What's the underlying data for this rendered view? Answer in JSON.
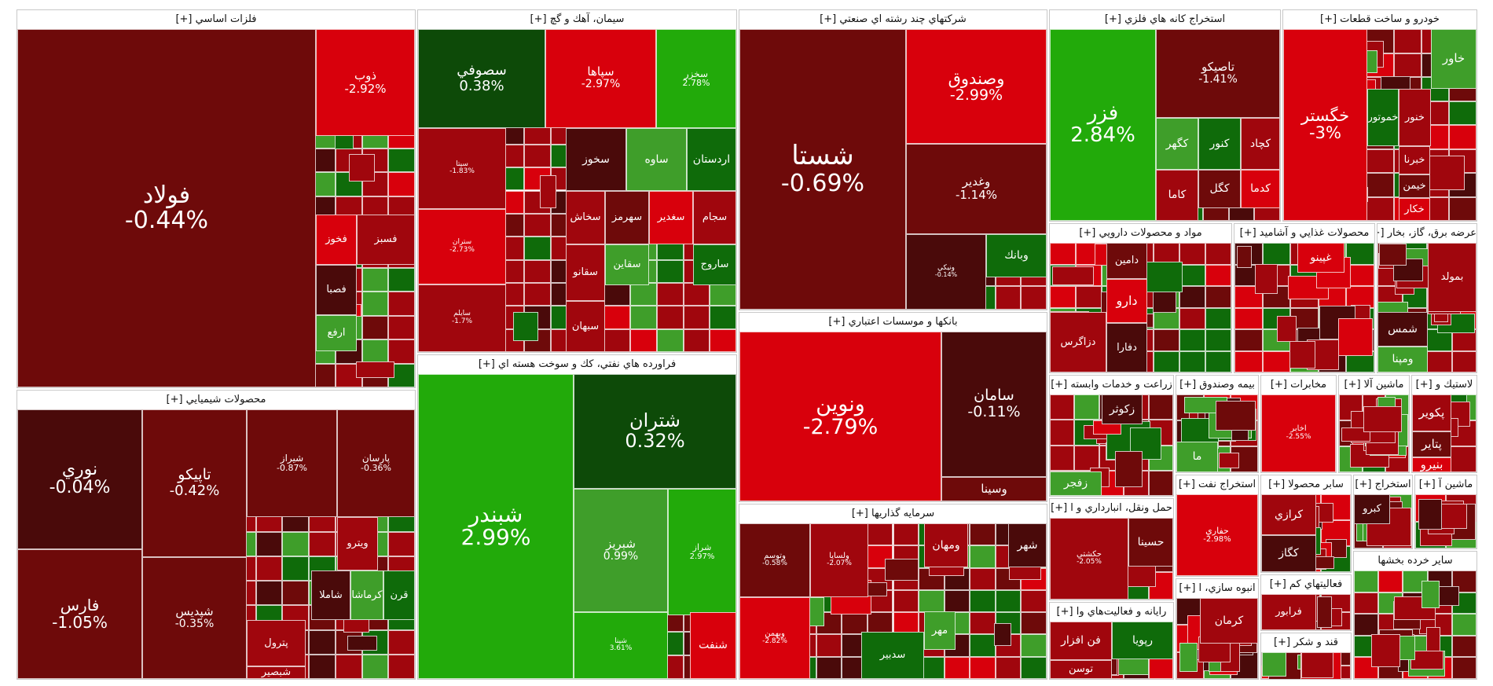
{
  "chart_data": {
    "type": "treemap",
    "title": "",
    "value_unit": "%",
    "colors": {
      "strong_positive": "#22aa0a",
      "positive": "#3f9e2a",
      "weak_positive": "#0f6b0a",
      "flat_positive": "#0d4a08",
      "flat_negative": "#4a0a0a",
      "weak_negative": "#6e0a0a",
      "negative": "#a0060d",
      "strong_negative": "#d8000c"
    },
    "sectors": [
      {
        "name": "فلزات اساسي [+]",
        "tiles": [
          {
            "symbol": "فولاد",
            "change": "-0.44%"
          },
          {
            "symbol": "ذوب",
            "change": "-2.92%"
          },
          {
            "symbol": "فخوز",
            "change": ""
          },
          {
            "symbol": "فسبز",
            "change": ""
          },
          {
            "symbol": "فصبا",
            "change": ""
          },
          {
            "symbol": "ارفع",
            "change": ""
          }
        ]
      },
      {
        "name": "سيمان، آهك و گچ [+]",
        "tiles": [
          {
            "symbol": "سصوفي",
            "change": "0.38%"
          },
          {
            "symbol": "سپاها",
            "change": "-2.97%"
          },
          {
            "symbol": "سخزر",
            "change": "2.78%"
          },
          {
            "symbol": "سخوز",
            "change": ""
          },
          {
            "symbol": "ساوه",
            "change": ""
          },
          {
            "symbol": "اردستان",
            "change": ""
          },
          {
            "symbol": "سيتا",
            "change": "-1.83%"
          },
          {
            "symbol": "سخاش",
            "change": ""
          },
          {
            "symbol": "سهرمز",
            "change": ""
          },
          {
            "symbol": "سغدير",
            "change": ""
          },
          {
            "symbol": "سجام",
            "change": ""
          },
          {
            "symbol": "ستران",
            "change": "-2.73%"
          },
          {
            "symbol": "سقاين",
            "change": ""
          },
          {
            "symbol": "ساروج",
            "change": ""
          },
          {
            "symbol": "سقانو",
            "change": ""
          },
          {
            "symbol": "سبهان",
            "change": ""
          },
          {
            "symbol": "سايلم",
            "change": "-1.7%"
          }
        ]
      },
      {
        "name": "شركتهاي چند رشته اي صنعتي [+]",
        "tiles": [
          {
            "symbol": "شستا",
            "change": "-0.69%"
          },
          {
            "symbol": "وصندوق",
            "change": "-2.99%"
          },
          {
            "symbol": "وغدير",
            "change": "-1.14%"
          },
          {
            "symbol": "ونيكي",
            "change": "-0.14%"
          },
          {
            "symbol": "وبانك",
            "change": ""
          }
        ]
      },
      {
        "name": "استخراج كانه هاي فلزي [+]",
        "tiles": [
          {
            "symbol": "فزر",
            "change": "2.84%"
          },
          {
            "symbol": "تاصيكو",
            "change": "-1.41%"
          },
          {
            "symbol": "كگهر",
            "change": ""
          },
          {
            "symbol": "كنور",
            "change": ""
          },
          {
            "symbol": "كچاد",
            "change": ""
          },
          {
            "symbol": "كاما",
            "change": ""
          },
          {
            "symbol": "كگل",
            "change": ""
          },
          {
            "symbol": "كدما",
            "change": ""
          }
        ]
      },
      {
        "name": "خودرو و ساخت قطعات [+]",
        "tiles": [
          {
            "symbol": "خگستر",
            "change": "-3%"
          },
          {
            "symbol": "خاور",
            "change": ""
          },
          {
            "symbol": "خموتور",
            "change": ""
          },
          {
            "symbol": "خنور",
            "change": ""
          },
          {
            "symbol": "خبرنا",
            "change": ""
          },
          {
            "symbol": "خيمن",
            "change": ""
          },
          {
            "symbol": "خكار",
            "change": ""
          }
        ]
      },
      {
        "name": "محصولات شيميايي [+]",
        "tiles": [
          {
            "symbol": "نوري",
            "change": "-0.04%"
          },
          {
            "symbol": "تاپيكو",
            "change": "-0.42%"
          },
          {
            "symbol": "شيراز",
            "change": "-0.87%"
          },
          {
            "symbol": "پارسان",
            "change": "-0.36%"
          },
          {
            "symbol": "فارس",
            "change": "-1.05%"
          },
          {
            "symbol": "شپديس",
            "change": "-0.35%"
          },
          {
            "symbol": "ويترو",
            "change": ""
          },
          {
            "symbol": "شاملا",
            "change": ""
          },
          {
            "symbol": "كرماشا",
            "change": ""
          },
          {
            "symbol": "قرن",
            "change": ""
          },
          {
            "symbol": "پترول",
            "change": ""
          },
          {
            "symbol": "شبصير",
            "change": ""
          }
        ]
      },
      {
        "name": "فراورده هاي نفتي، كك و سوخت هسته اي [+]",
        "tiles": [
          {
            "symbol": "شبندر",
            "change": "2.99%"
          },
          {
            "symbol": "شتران",
            "change": "0.32%"
          },
          {
            "symbol": "شبريز",
            "change": "0.99%"
          },
          {
            "symbol": "شراز",
            "change": "2.97%"
          },
          {
            "symbol": "شنفت",
            "change": ""
          },
          {
            "symbol": "شپنا",
            "change": "3.61%"
          }
        ]
      },
      {
        "name": "بانكها و موسسات اعتباري [+]",
        "tiles": [
          {
            "symbol": "ونوين",
            "change": "-2.79%"
          },
          {
            "symbol": "سامان",
            "change": "-0.11%"
          },
          {
            "symbol": "وسينا",
            "change": ""
          }
        ]
      },
      {
        "name": "سرمايه گذاريها [+]",
        "tiles": [
          {
            "symbol": "وتوسم",
            "change": "-0.58%"
          },
          {
            "symbol": "ولساپا",
            "change": "-2.07%"
          },
          {
            "symbol": "وبهمن",
            "change": "-2.82%"
          },
          {
            "symbol": "ومهان",
            "change": ""
          },
          {
            "symbol": "شهر",
            "change": ""
          },
          {
            "symbol": "مهر",
            "change": ""
          },
          {
            "symbol": "سدبير",
            "change": ""
          }
        ]
      },
      {
        "name": "مواد و محصولات دارويي [+]",
        "tiles": [
          {
            "symbol": "دامين",
            "change": ""
          },
          {
            "symbol": "دارو",
            "change": ""
          },
          {
            "symbol": "دزاگرس",
            "change": ""
          },
          {
            "symbol": "دفارا",
            "change": ""
          }
        ]
      },
      {
        "name": "محصولات غذايي و آشاميد [+]",
        "tiles": [
          {
            "symbol": "غپينو",
            "change": ""
          }
        ]
      },
      {
        "name": "عرضه برق، گاز، بخار [+]",
        "tiles": [
          {
            "symbol": "بمولد",
            "change": ""
          },
          {
            "symbol": "شمس",
            "change": ""
          },
          {
            "symbol": "ومپنا",
            "change": ""
          }
        ]
      },
      {
        "name": "زراعت و خدمات وابسته [+]",
        "tiles": [
          {
            "symbol": "زكوثر",
            "change": ""
          },
          {
            "symbol": "زفجر",
            "change": ""
          }
        ]
      },
      {
        "name": "بيمه وصندوق [+]",
        "tiles": [
          {
            "symbol": "ما",
            "change": ""
          }
        ]
      },
      {
        "name": "مخابرات [+]",
        "tiles": [
          {
            "symbol": "اخابر",
            "change": "-2.55%"
          }
        ]
      },
      {
        "name": "ماشين آلا [+]",
        "tiles": []
      },
      {
        "name": "لاستيك و [+]",
        "tiles": [
          {
            "symbol": "پكوير",
            "change": ""
          },
          {
            "symbol": "پتاير",
            "change": ""
          },
          {
            "symbol": "بنيرو",
            "change": ""
          }
        ]
      },
      {
        "name": "حمل ونقل، انبارداري و ا [+]",
        "tiles": [
          {
            "symbol": "حسينا",
            "change": ""
          },
          {
            "symbol": "حكشتي",
            "change": "-2.05%"
          }
        ]
      },
      {
        "name": "استخراج نفت [+]",
        "tiles": [
          {
            "symbol": "حفاري",
            "change": "-2.98%"
          }
        ]
      },
      {
        "name": "سابر محصولا [+]",
        "tiles": [
          {
            "symbol": "كرازي",
            "change": ""
          },
          {
            "symbol": "كگاز",
            "change": ""
          }
        ]
      },
      {
        "name": "استخراج [+]",
        "tiles": [
          {
            "symbol": "كبرو",
            "change": ""
          }
        ]
      },
      {
        "name": "ماشين آ [+]",
        "tiles": []
      },
      {
        "name": "رايانه و فعاليت‌هاي وا [+]",
        "tiles": [
          {
            "symbol": "رپويا",
            "change": ""
          },
          {
            "symbol": "فن افزار",
            "change": ""
          },
          {
            "symbol": "توسن",
            "change": ""
          }
        ]
      },
      {
        "name": "انبوه سازي، ا [+]",
        "tiles": [
          {
            "symbol": "كرمان",
            "change": ""
          }
        ]
      },
      {
        "name": "فعاليتهاي كم [+]",
        "tiles": [
          {
            "symbol": "فرابور",
            "change": ""
          }
        ]
      },
      {
        "name": "قند و شكر [+]",
        "tiles": []
      },
      {
        "name": "ساير خرده بخشها",
        "tiles": []
      }
    ]
  }
}
